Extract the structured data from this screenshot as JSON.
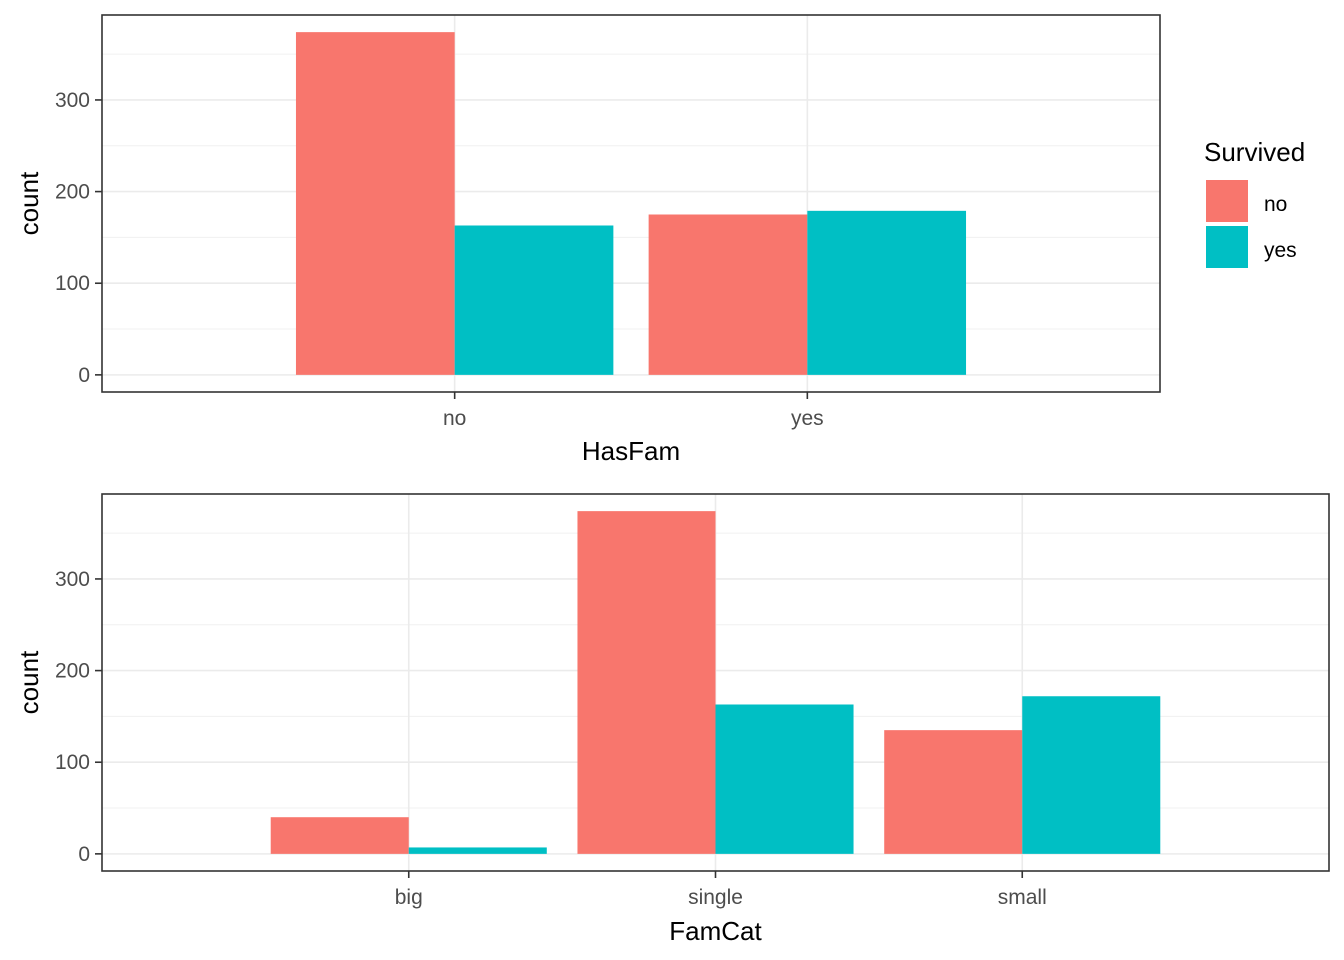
{
  "legend": {
    "title": "Survived",
    "entries": [
      {
        "label": "no",
        "color": "#F8766D"
      },
      {
        "label": "yes",
        "color": "#00BFC4"
      }
    ]
  },
  "chart_data": [
    {
      "type": "bar",
      "xlabel": "HasFam",
      "ylabel": "count",
      "categories": [
        "no",
        "yes"
      ],
      "series": [
        {
          "name": "no",
          "color": "#F8766D",
          "values": [
            374,
            175
          ]
        },
        {
          "name": "yes",
          "color": "#00BFC4",
          "values": [
            163,
            179
          ]
        }
      ],
      "yticks": [
        0,
        100,
        200,
        300
      ],
      "ylim": [
        -18.7,
        392.7
      ],
      "grid": true,
      "legend_position": "right"
    },
    {
      "type": "bar",
      "xlabel": "FamCat",
      "ylabel": "count",
      "categories": [
        "big",
        "single",
        "small"
      ],
      "series": [
        {
          "name": "no",
          "color": "#F8766D",
          "values": [
            40,
            374,
            135
          ]
        },
        {
          "name": "yes",
          "color": "#00BFC4",
          "values": [
            7,
            163,
            172
          ]
        }
      ],
      "yticks": [
        0,
        100,
        200,
        300
      ],
      "ylim": [
        -18.7,
        392.7
      ],
      "grid": true,
      "legend_position": "none"
    }
  ]
}
